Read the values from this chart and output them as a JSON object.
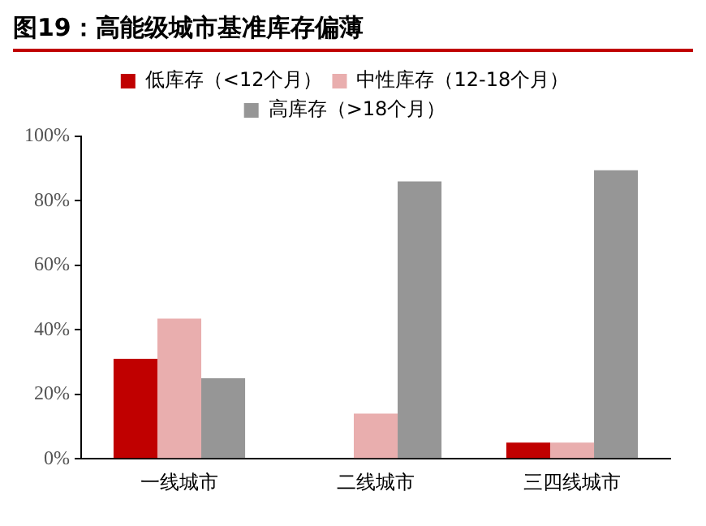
{
  "chart_data": {
    "type": "bar",
    "title": "图19：高能级城市基准库存偏薄",
    "categories": [
      "一线城市",
      "二线城市",
      "三四线城市"
    ],
    "series": [
      {
        "name": "低库存（<12个月）",
        "color": "#c00000",
        "values": [
          31,
          0,
          5
        ]
      },
      {
        "name": "中性库存（12-18个月）",
        "color": "#e9aeae",
        "values": [
          43.5,
          14,
          5
        ]
      },
      {
        "name": "高库存（>18个月）",
        "color": "#969696",
        "values": [
          25,
          86,
          89.5
        ]
      }
    ],
    "ylim": [
      0,
      100
    ],
    "yticks": [
      {
        "value": 0,
        "label": "0%"
      },
      {
        "value": 20,
        "label": "20%"
      },
      {
        "value": 40,
        "label": "40%"
      },
      {
        "value": 60,
        "label": "60%"
      },
      {
        "value": 80,
        "label": "80%"
      },
      {
        "value": 100,
        "label": "100%"
      }
    ],
    "grid": false,
    "legend": "top"
  }
}
